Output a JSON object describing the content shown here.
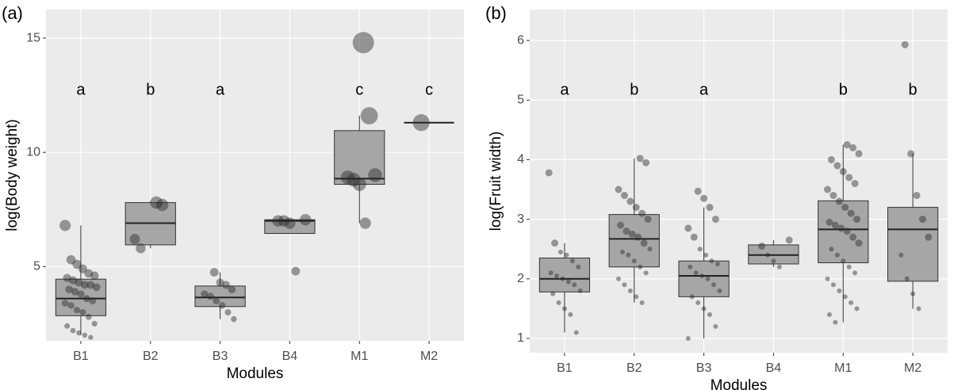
{
  "chart_data": [
    {
      "type": "box",
      "panel_label": "(a)",
      "ylabel": "log(Body weight)",
      "xlabel": "Modules",
      "categories": [
        "B1",
        "B2",
        "B3",
        "B4",
        "M1",
        "M2"
      ],
      "letters": [
        "a",
        "b",
        "a",
        null,
        "c",
        "c"
      ],
      "ylim": [
        1.75,
        16.25
      ],
      "yticks": [
        5,
        10,
        15
      ],
      "grid": true,
      "boxes": [
        {
          "low": 2.0,
          "q1": 2.85,
          "median": 3.6,
          "q3": 4.45,
          "high": 6.8
        },
        {
          "low": 5.8,
          "q1": 5.95,
          "median": 6.9,
          "q3": 7.8,
          "high": 7.85
        },
        {
          "low": 2.7,
          "q1": 3.25,
          "median": 3.65,
          "q3": 4.15,
          "high": 4.75
        },
        {
          "low": 6.45,
          "q1": 6.45,
          "median": 7.0,
          "q3": 7.05,
          "high": 7.05
        },
        {
          "low": 6.9,
          "q1": 8.6,
          "median": 8.85,
          "q3": 10.95,
          "high": 11.6
        },
        {
          "low": 11.3,
          "q1": 11.3,
          "median": 11.3,
          "q3": 11.3,
          "high": 11.3
        }
      ],
      "points": [
        [
          6.8,
          5.3,
          5.1,
          4.9,
          4.7,
          4.6,
          4.5,
          4.4,
          4.3,
          4.2,
          4.2,
          4.1,
          4.0,
          3.9,
          3.8,
          3.6,
          3.5,
          3.4,
          3.3,
          3.1,
          3.0,
          2.8,
          2.5,
          2.4,
          2.2,
          2.1,
          2.0,
          1.9
        ],
        [
          7.8,
          7.7,
          6.2,
          5.8
        ],
        [
          4.75,
          4.3,
          4.2,
          4.0,
          3.8,
          3.7,
          3.5,
          3.3,
          3.0,
          2.7
        ],
        [
          7.05,
          7.0,
          7.0,
          6.9,
          4.8
        ],
        [
          14.8,
          11.6,
          9.0,
          8.9,
          8.8,
          8.6,
          6.9
        ],
        [
          11.3
        ]
      ]
    },
    {
      "type": "box",
      "panel_label": "(b)",
      "ylabel": "log(Fruit width)",
      "xlabel": "Modules",
      "categories": [
        "B1",
        "B2",
        "B3",
        "B4",
        "M1",
        "M2"
      ],
      "letters": [
        "a",
        "b",
        "a",
        null,
        "b",
        "b"
      ],
      "ylim": [
        0.76,
        6.52
      ],
      "yticks": [
        1,
        2,
        3,
        4,
        5,
        6
      ],
      "grid": true,
      "boxes": [
        {
          "low": 1.1,
          "q1": 1.78,
          "median": 2.0,
          "q3": 2.35,
          "high": 2.6
        },
        {
          "low": 1.6,
          "q1": 2.2,
          "median": 2.67,
          "q3": 3.08,
          "high": 4.02
        },
        {
          "low": 1.0,
          "q1": 1.7,
          "median": 2.05,
          "q3": 2.3,
          "high": 3.2
        },
        {
          "low": 2.2,
          "q1": 2.25,
          "median": 2.4,
          "q3": 2.57,
          "high": 2.65
        },
        {
          "low": 1.27,
          "q1": 2.27,
          "median": 2.83,
          "q3": 3.31,
          "high": 4.25
        },
        {
          "low": 1.5,
          "q1": 1.96,
          "median": 2.83,
          "q3": 3.2,
          "high": 4.1
        }
      ],
      "points": [
        [
          3.78,
          2.6,
          2.45,
          2.4,
          2.3,
          2.2,
          2.1,
          2.05,
          2.0,
          1.95,
          1.9,
          1.8,
          1.75,
          1.6,
          1.5,
          1.4,
          1.1
        ],
        [
          4.02,
          3.95,
          3.5,
          3.4,
          3.3,
          3.2,
          3.1,
          3.0,
          2.9,
          2.8,
          2.75,
          2.7,
          2.6,
          2.5,
          2.45,
          2.4,
          2.3,
          2.2,
          2.1,
          2.0,
          1.9,
          1.8,
          1.7,
          1.6
        ],
        [
          3.47,
          3.35,
          3.2,
          3.0,
          2.85,
          2.7,
          2.5,
          2.4,
          2.3,
          2.25,
          2.2,
          2.1,
          2.05,
          2.0,
          1.9,
          1.8,
          1.7,
          1.6,
          1.5,
          1.4,
          1.2,
          1.0
        ],
        [
          2.65,
          2.55,
          2.4,
          2.3,
          2.2
        ],
        [
          4.25,
          4.2,
          4.1,
          4.0,
          3.9,
          3.8,
          3.7,
          3.6,
          3.5,
          3.4,
          3.3,
          3.2,
          3.1,
          3.0,
          2.95,
          2.9,
          2.85,
          2.8,
          2.7,
          2.6,
          2.5,
          2.4,
          2.3,
          2.2,
          2.1,
          2.0,
          1.9,
          1.8,
          1.7,
          1.6,
          1.5,
          1.4,
          1.27
        ],
        [
          5.93,
          4.1,
          3.4,
          3.0,
          2.7,
          2.4,
          2.0,
          1.75,
          1.5
        ]
      ]
    }
  ]
}
